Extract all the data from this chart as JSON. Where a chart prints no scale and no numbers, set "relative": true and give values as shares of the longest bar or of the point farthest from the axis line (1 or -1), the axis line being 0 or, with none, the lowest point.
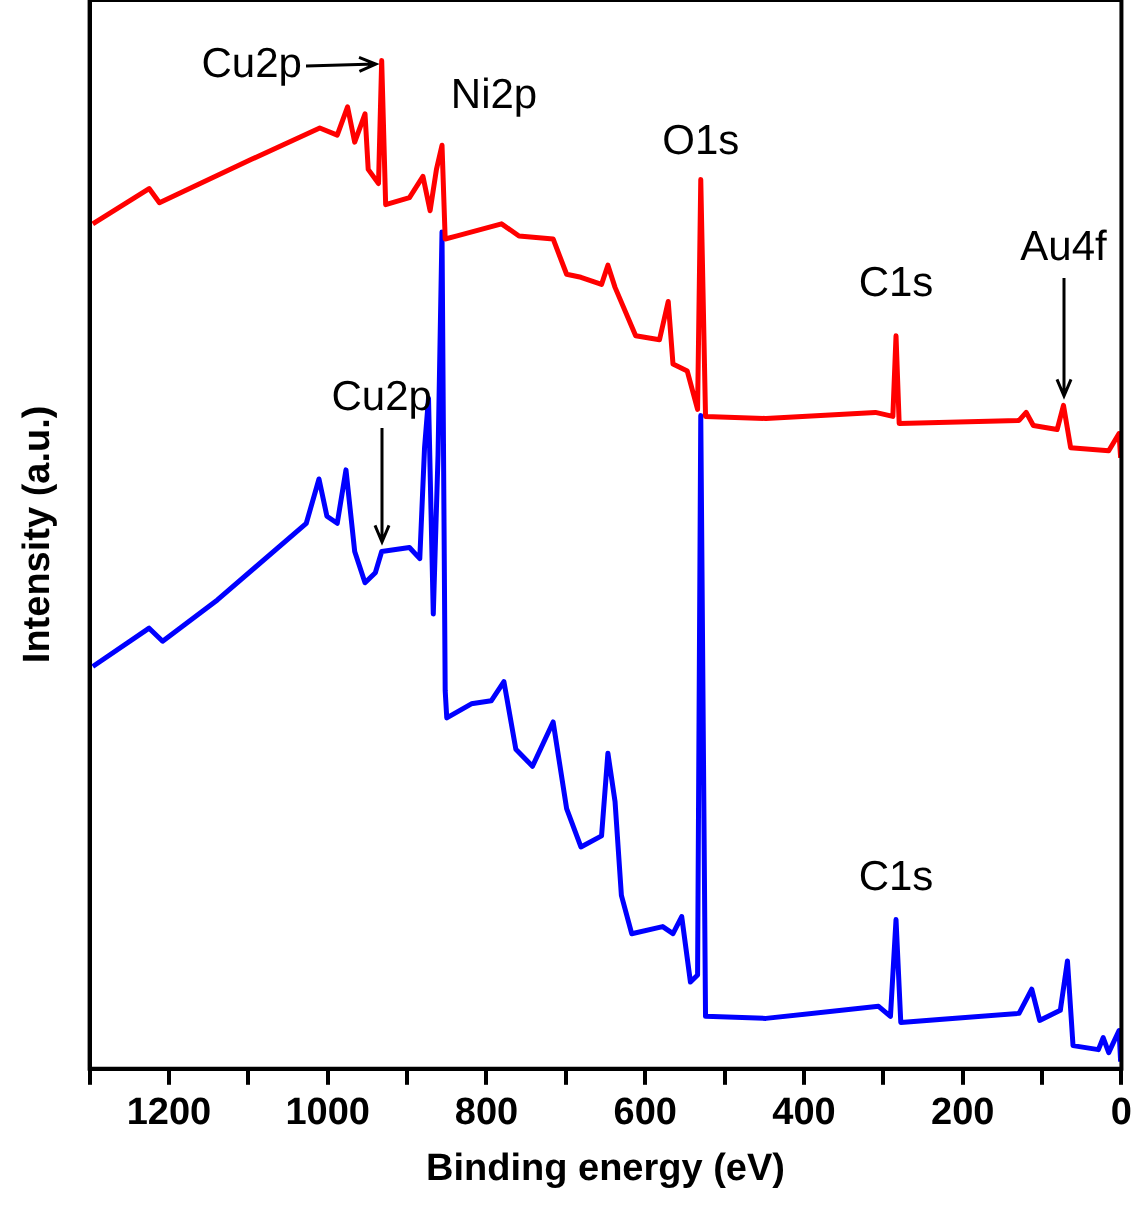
{
  "chart_data": {
    "type": "line",
    "relative": true,
    "xlabel": "Binding energy (eV)",
    "ylabel": "Intensity (a.u.)",
    "xlim": [
      1300,
      0
    ],
    "xticks": [
      {
        "value": 1300,
        "label": null
      },
      1200,
      {
        "value": 1100,
        "label": null
      },
      1000,
      {
        "value": 900,
        "label": null
      },
      800,
      {
        "value": 700,
        "label": null
      },
      600,
      {
        "value": 500,
        "label": null
      },
      400,
      {
        "value": 300,
        "label": null
      },
      200,
      {
        "value": 100,
        "label": null
      },
      0
    ],
    "grid": false,
    "legend": false,
    "marker": "none",
    "line_style": "solid",
    "series": [
      {
        "color": "#ff0000",
        "x": [
          1296,
          1225,
          1212,
          1096,
          1010,
          988,
          975,
          966,
          953,
          949,
          936,
          932,
          927,
          897,
          880,
          871,
          863,
          856,
          852,
          837,
          781,
          759,
          716,
          699,
          681,
          655,
          647,
          638,
          612,
          582,
          571,
          565,
          547,
          534,
          530,
          524,
          448,
          310,
          288,
          284,
          280,
          129,
          120,
          111,
          81,
          73,
          64,
          16,
          3,
          1
        ],
        "values": [
          0.838,
          0.873,
          0.859,
          0.902,
          0.933,
          0.926,
          0.954,
          0.919,
          0.947,
          0.892,
          0.878,
          1.0,
          0.857,
          0.864,
          0.885,
          0.851,
          0.892,
          0.916,
          0.823,
          0.826,
          0.838,
          0.826,
          0.823,
          0.788,
          0.785,
          0.778,
          0.797,
          0.775,
          0.727,
          0.723,
          0.761,
          0.699,
          0.692,
          0.654,
          0.882,
          0.647,
          0.645,
          0.651,
          0.647,
          0.727,
          0.64,
          0.643,
          0.651,
          0.638,
          0.634,
          0.658,
          0.616,
          0.613,
          0.63,
          0.606
        ]
      },
      {
        "color": "#0000ff",
        "x": [
          1296,
          1225,
          1208,
          1139,
          1027,
          1011,
          1001,
          988,
          977,
          966,
          953,
          940,
          932,
          897,
          884,
          878,
          873,
          867,
          861,
          856,
          852,
          850,
          819,
          794,
          778,
          763,
          742,
          716,
          699,
          681,
          655,
          647,
          638,
          630,
          617,
          578,
          565,
          554,
          543,
          534,
          530,
          524,
          448,
          306,
          291,
          284,
          278,
          129,
          113,
          103,
          77,
          68,
          61,
          29,
          23,
          16,
          3,
          1
        ],
        "values": [
          0.399,
          0.437,
          0.424,
          0.465,
          0.541,
          0.585,
          0.548,
          0.541,
          0.594,
          0.513,
          0.482,
          0.492,
          0.513,
          0.517,
          0.506,
          0.616,
          0.665,
          0.451,
          0.609,
          0.83,
          0.375,
          0.348,
          0.362,
          0.365,
          0.384,
          0.317,
          0.3,
          0.344,
          0.258,
          0.22,
          0.231,
          0.313,
          0.265,
          0.172,
          0.134,
          0.141,
          0.134,
          0.151,
          0.086,
          0.093,
          0.648,
          0.052,
          0.05,
          0.062,
          0.052,
          0.148,
          0.046,
          0.055,
          0.079,
          0.048,
          0.058,
          0.107,
          0.023,
          0.019,
          0.031,
          0.016,
          0.038,
          0.007
        ]
      }
    ],
    "annotations": [
      {
        "text": "Cu2p",
        "x": 932,
        "y": 1.0
      },
      {
        "text": "Ni2p",
        "x": 856,
        "y": 0.916
      },
      {
        "text": "O1s",
        "x": 530,
        "y": 0.882
      },
      {
        "text": "C1s",
        "x": 284,
        "y": 0.727
      },
      {
        "text": "Au4f",
        "x": 73,
        "y": 0.658
      },
      {
        "text": "Cu2p",
        "x": 932,
        "y": 0.513
      },
      {
        "text": "C1s",
        "x": 284,
        "y": 0.148
      }
    ]
  }
}
